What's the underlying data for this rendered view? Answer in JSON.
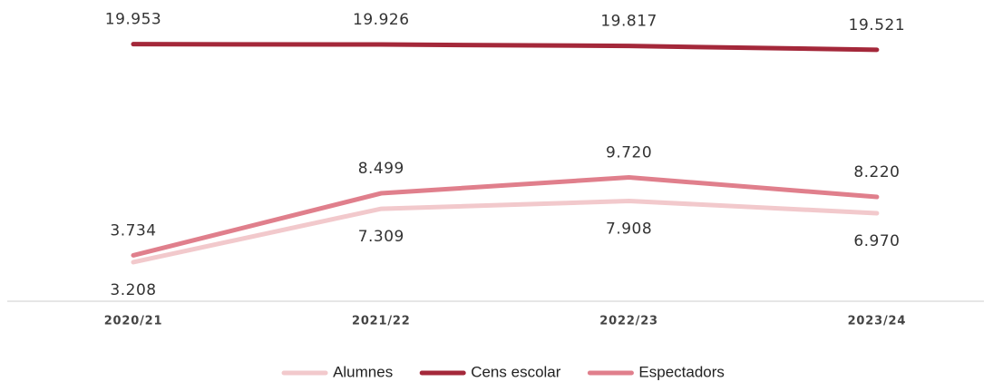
{
  "chart_data": {
    "type": "line",
    "categories": [
      "2020/21",
      "2021/22",
      "2022/23",
      "2023/24"
    ],
    "ylim": [
      0,
      20000
    ],
    "series": [
      {
        "name": "Alumnes",
        "color": "#f2c9cc",
        "label_position": "below",
        "values": [
          3208,
          7309,
          7908,
          6970
        ],
        "value_labels": [
          "3.208",
          "7.309",
          "7.908",
          "6.970"
        ]
      },
      {
        "name": "Cens escolar",
        "color": "#a4283a",
        "label_position": "above",
        "values": [
          19953,
          19926,
          19817,
          19521
        ],
        "value_labels": [
          "19.953",
          "19.926",
          "19.817",
          "19.521"
        ]
      },
      {
        "name": "Espectadors",
        "color": "#e07f8c",
        "label_position": "above",
        "values": [
          3734,
          8499,
          9720,
          8220
        ],
        "value_labels": [
          "3.734",
          "8.499",
          "9.720",
          "8.220"
        ]
      }
    ],
    "legend": "bottom"
  }
}
